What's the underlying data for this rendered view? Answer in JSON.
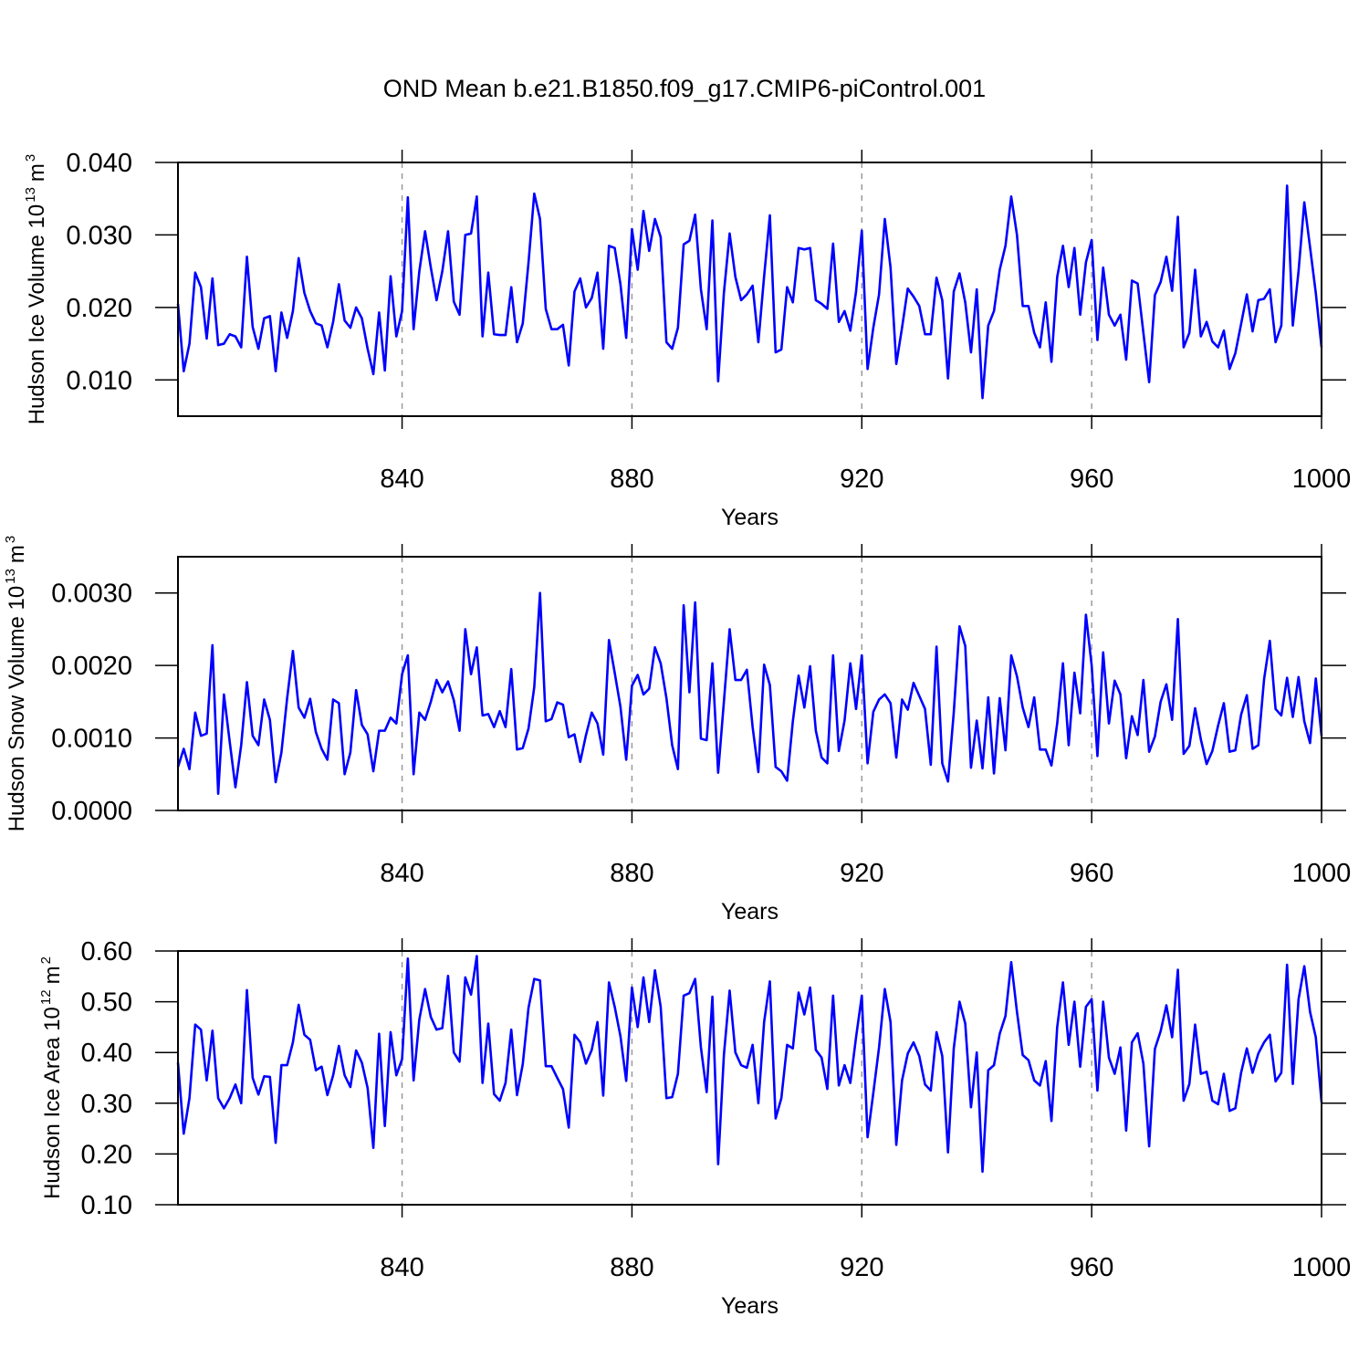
{
  "chart_data": [
    {
      "type": "line",
      "title": "OND Mean b.e21.B1850.f09_g17.CMIP6-piControl.001",
      "ylabel": [
        "Hudson Ice Volume 10",
        "13",
        "m",
        "3"
      ],
      "xlabel": "Years",
      "color": "#0000ff",
      "xgrid": true,
      "xlim": [
        801,
        1000
      ],
      "xticks": [
        840,
        880,
        920,
        960,
        1000
      ],
      "ylim": [
        0.005,
        0.04
      ],
      "yticks": [
        {
          "value": 0.01,
          "label": "0.010"
        },
        {
          "value": 0.02,
          "label": "0.020"
        },
        {
          "value": 0.03,
          "label": "0.030"
        },
        {
          "value": 0.04,
          "label": "0.040"
        }
      ],
      "x": [
        801,
        802,
        803,
        804,
        805,
        806,
        807,
        808,
        809,
        810,
        811,
        812,
        813,
        814,
        815,
        816,
        817,
        818,
        819,
        820,
        821,
        822,
        823,
        824,
        825,
        826,
        827,
        828,
        829,
        830,
        831,
        832,
        833,
        834,
        835,
        836,
        837,
        838,
        839,
        840,
        841,
        842,
        843,
        844,
        845,
        846,
        847,
        848,
        849,
        850,
        851,
        852,
        853,
        854,
        855,
        856,
        857,
        858,
        859,
        860,
        861,
        862,
        863,
        864,
        865,
        866,
        867,
        868,
        869,
        870,
        871,
        872,
        873,
        874,
        875,
        876,
        877,
        878,
        879,
        880,
        881,
        882,
        883,
        884,
        885,
        886,
        887,
        888,
        889,
        890,
        891,
        892,
        893,
        894,
        895,
        896,
        897,
        898,
        899,
        900,
        901,
        902,
        903,
        904,
        905,
        906,
        907,
        908,
        909,
        910,
        911,
        912,
        913,
        914,
        915,
        916,
        917,
        918,
        919,
        920,
        921,
        922,
        923,
        924,
        925,
        926,
        927,
        928,
        929,
        930,
        931,
        932,
        933,
        934,
        935,
        936,
        937,
        938,
        939,
        940,
        941,
        942,
        943,
        944,
        945,
        946,
        947,
        948,
        949,
        950,
        951,
        952,
        953,
        954,
        955,
        956,
        957,
        958,
        959,
        960,
        961,
        962,
        963,
        964,
        965,
        966,
        967,
        968,
        969,
        970,
        971,
        972,
        973,
        974,
        975,
        976,
        977,
        978,
        979,
        980,
        981,
        982,
        983,
        984,
        985,
        986,
        987,
        988,
        989,
        990,
        991,
        992,
        993,
        994,
        995,
        996,
        997,
        998,
        999,
        1000
      ],
      "values": [
        0.0205,
        0.0112,
        0.015,
        0.0248,
        0.0228,
        0.0157,
        0.024,
        0.0148,
        0.015,
        0.0163,
        0.016,
        0.0145,
        0.027,
        0.0173,
        0.0143,
        0.0185,
        0.0188,
        0.0112,
        0.0193,
        0.0158,
        0.0195,
        0.0268,
        0.022,
        0.0195,
        0.0178,
        0.0175,
        0.0145,
        0.018,
        0.0232,
        0.0182,
        0.0172,
        0.02,
        0.0185,
        0.0143,
        0.0108,
        0.0193,
        0.0113,
        0.0243,
        0.016,
        0.0195,
        0.0352,
        0.017,
        0.025,
        0.0305,
        0.0255,
        0.021,
        0.025,
        0.0305,
        0.0208,
        0.019,
        0.03,
        0.0302,
        0.0353,
        0.016,
        0.0248,
        0.0163,
        0.0162,
        0.0162,
        0.0228,
        0.0152,
        0.0178,
        0.0262,
        0.0357,
        0.0322,
        0.0198,
        0.017,
        0.017,
        0.0176,
        0.012,
        0.0222,
        0.024,
        0.02,
        0.0213,
        0.0248,
        0.0143,
        0.0285,
        0.0282,
        0.0232,
        0.0158,
        0.0308,
        0.0252,
        0.0333,
        0.0278,
        0.0322,
        0.0297,
        0.0152,
        0.0143,
        0.0172,
        0.0287,
        0.0292,
        0.0328,
        0.0225,
        0.017,
        0.032,
        0.0098,
        0.022,
        0.0302,
        0.0242,
        0.021,
        0.0218,
        0.023,
        0.0152,
        0.0243,
        0.0327,
        0.0138,
        0.0142,
        0.0228,
        0.0207,
        0.0282,
        0.028,
        0.0282,
        0.021,
        0.0205,
        0.0198,
        0.0288,
        0.018,
        0.0195,
        0.0168,
        0.0222,
        0.0306,
        0.0115,
        0.0172,
        0.0218,
        0.0322,
        0.0255,
        0.0122,
        0.0172,
        0.0226,
        0.0215,
        0.0202,
        0.0163,
        0.0163,
        0.0241,
        0.021,
        0.0102,
        0.0222,
        0.0247,
        0.0207,
        0.0138,
        0.0225,
        0.0075,
        0.0175,
        0.0195,
        0.0252,
        0.0285,
        0.0353,
        0.03,
        0.0202,
        0.0202,
        0.0165,
        0.0145,
        0.0207,
        0.0125,
        0.0242,
        0.0285,
        0.0228,
        0.0282,
        0.019,
        0.0262,
        0.0293,
        0.0155,
        0.0255,
        0.019,
        0.0175,
        0.019,
        0.0128,
        0.0237,
        0.0233,
        0.0165,
        0.0097,
        0.0217,
        0.0235,
        0.027,
        0.0223,
        0.0325,
        0.0145,
        0.0165,
        0.0252,
        0.016,
        0.018,
        0.0153,
        0.0145,
        0.0168,
        0.0115,
        0.0137,
        0.0177,
        0.0218,
        0.0167,
        0.021,
        0.0212,
        0.0225,
        0.0152,
        0.0175,
        0.0368,
        0.0175,
        0.025,
        0.0345,
        0.0283,
        0.022,
        0.0145
      ]
    },
    {
      "type": "line",
      "ylabel": [
        "Hudson Snow Volume 10",
        "13",
        "m",
        "3"
      ],
      "xlabel": "Years",
      "color": "#0000ff",
      "xgrid": true,
      "xlim": [
        801,
        1000
      ],
      "xticks": [
        840,
        880,
        920,
        960,
        1000
      ],
      "ylim": [
        0,
        0.0035
      ],
      "yticks": [
        {
          "value": 0,
          "label": "0.0000"
        },
        {
          "value": 0.001,
          "label": "0.0010"
        },
        {
          "value": 0.002,
          "label": "0.0020"
        },
        {
          "value": 0.003,
          "label": "0.0030"
        }
      ],
      "x": [
        801,
        802,
        803,
        804,
        805,
        806,
        807,
        808,
        809,
        810,
        811,
        812,
        813,
        814,
        815,
        816,
        817,
        818,
        819,
        820,
        821,
        822,
        823,
        824,
        825,
        826,
        827,
        828,
        829,
        830,
        831,
        832,
        833,
        834,
        835,
        836,
        837,
        838,
        839,
        840,
        841,
        842,
        843,
        844,
        845,
        846,
        847,
        848,
        849,
        850,
        851,
        852,
        853,
        854,
        855,
        856,
        857,
        858,
        859,
        860,
        861,
        862,
        863,
        864,
        865,
        866,
        867,
        868,
        869,
        870,
        871,
        872,
        873,
        874,
        875,
        876,
        877,
        878,
        879,
        880,
        881,
        882,
        883,
        884,
        885,
        886,
        887,
        888,
        889,
        890,
        891,
        892,
        893,
        894,
        895,
        896,
        897,
        898,
        899,
        900,
        901,
        902,
        903,
        904,
        905,
        906,
        907,
        908,
        909,
        910,
        911,
        912,
        913,
        914,
        915,
        916,
        917,
        918,
        919,
        920,
        921,
        922,
        923,
        924,
        925,
        926,
        927,
        928,
        929,
        930,
        931,
        932,
        933,
        934,
        935,
        936,
        937,
        938,
        939,
        940,
        941,
        942,
        943,
        944,
        945,
        946,
        947,
        948,
        949,
        950,
        951,
        952,
        953,
        954,
        955,
        956,
        957,
        958,
        959,
        960,
        961,
        962,
        963,
        964,
        965,
        966,
        967,
        968,
        969,
        970,
        971,
        972,
        973,
        974,
        975,
        976,
        977,
        978,
        979,
        980,
        981,
        982,
        983,
        984,
        985,
        986,
        987,
        988,
        989,
        990,
        991,
        992,
        993,
        994,
        995,
        996,
        997,
        998,
        999,
        1000
      ],
      "values": [
        0.0006,
        0.00085,
        0.00057,
        0.00135,
        0.00103,
        0.00106,
        0.00228,
        0.00023,
        0.0016,
        0.00095,
        0.00032,
        0.0009,
        0.00177,
        0.00103,
        0.0009,
        0.00153,
        0.00125,
        0.00039,
        0.0008,
        0.00155,
        0.0022,
        0.00142,
        0.00128,
        0.00154,
        0.00108,
        0.00085,
        0.0007,
        0.00153,
        0.00148,
        0.0005,
        0.0008,
        0.00166,
        0.00118,
        0.00105,
        0.00054,
        0.0011,
        0.0011,
        0.00128,
        0.0012,
        0.00188,
        0.00214,
        0.0005,
        0.00135,
        0.00125,
        0.0015,
        0.0018,
        0.00163,
        0.00178,
        0.00152,
        0.0011,
        0.0025,
        0.00188,
        0.00225,
        0.00131,
        0.00133,
        0.00115,
        0.00137,
        0.00115,
        0.00195,
        0.00084,
        0.00086,
        0.00113,
        0.0017,
        0.003,
        0.00123,
        0.00126,
        0.00149,
        0.00146,
        0.00101,
        0.00105,
        0.00067,
        0.00104,
        0.00135,
        0.0012,
        0.00077,
        0.00235,
        0.0019,
        0.00143,
        0.0007,
        0.00172,
        0.00187,
        0.0016,
        0.00168,
        0.00225,
        0.00203,
        0.00155,
        0.0009,
        0.00057,
        0.00283,
        0.00163,
        0.00287,
        0.00099,
        0.00097,
        0.00203,
        0.00052,
        0.0015,
        0.0025,
        0.0018,
        0.0018,
        0.00194,
        0.00115,
        0.00053,
        0.00201,
        0.00173,
        0.0006,
        0.00054,
        0.00041,
        0.00123,
        0.00186,
        0.00142,
        0.00199,
        0.0011,
        0.00073,
        0.00065,
        0.00214,
        0.00082,
        0.00124,
        0.00203,
        0.0014,
        0.00214,
        0.00065,
        0.00136,
        0.00153,
        0.0016,
        0.00148,
        0.00073,
        0.00153,
        0.00139,
        0.00176,
        0.00158,
        0.0014,
        0.00063,
        0.00226,
        0.00065,
        0.0004,
        0.00135,
        0.00254,
        0.00227,
        0.00059,
        0.00124,
        0.00058,
        0.00156,
        0.00051,
        0.00155,
        0.00083,
        0.00214,
        0.00185,
        0.00142,
        0.00115,
        0.00156,
        0.00084,
        0.00084,
        0.00062,
        0.0012,
        0.00203,
        0.0009,
        0.0019,
        0.00134,
        0.0027,
        0.002,
        0.00075,
        0.00218,
        0.0012,
        0.00179,
        0.0016,
        0.00072,
        0.0013,
        0.00104,
        0.0018,
        0.00081,
        0.00102,
        0.0015,
        0.00174,
        0.00125,
        0.00264,
        0.00078,
        0.00089,
        0.00141,
        0.00098,
        0.00064,
        0.00082,
        0.00117,
        0.00148,
        0.00081,
        0.00083,
        0.00132,
        0.00159,
        0.00085,
        0.0009,
        0.00181,
        0.00234,
        0.0014,
        0.00131,
        0.00183,
        0.00129,
        0.00184,
        0.00123,
        0.00093,
        0.00182,
        0.00103
      ]
    },
    {
      "type": "line",
      "ylabel": [
        "Hudson Ice Area 10",
        "12",
        "m",
        "2"
      ],
      "xlabel": "Years",
      "color": "#0000ff",
      "xgrid": true,
      "xlim": [
        801,
        1000
      ],
      "xticks": [
        840,
        880,
        920,
        960,
        1000
      ],
      "ylim": [
        0.1,
        0.6
      ],
      "yticks": [
        {
          "value": 0.1,
          "label": "0.10"
        },
        {
          "value": 0.2,
          "label": "0.20"
        },
        {
          "value": 0.3,
          "label": "0.30"
        },
        {
          "value": 0.4,
          "label": "0.40"
        },
        {
          "value": 0.5,
          "label": "0.50"
        },
        {
          "value": 0.6,
          "label": "0.60"
        }
      ],
      "x": [
        801,
        802,
        803,
        804,
        805,
        806,
        807,
        808,
        809,
        810,
        811,
        812,
        813,
        814,
        815,
        816,
        817,
        818,
        819,
        820,
        821,
        822,
        823,
        824,
        825,
        826,
        827,
        828,
        829,
        830,
        831,
        832,
        833,
        834,
        835,
        836,
        837,
        838,
        839,
        840,
        841,
        842,
        843,
        844,
        845,
        846,
        847,
        848,
        849,
        850,
        851,
        852,
        853,
        854,
        855,
        856,
        857,
        858,
        859,
        860,
        861,
        862,
        863,
        864,
        865,
        866,
        867,
        868,
        869,
        870,
        871,
        872,
        873,
        874,
        875,
        876,
        877,
        878,
        879,
        880,
        881,
        882,
        883,
        884,
        885,
        886,
        887,
        888,
        889,
        890,
        891,
        892,
        893,
        894,
        895,
        896,
        897,
        898,
        899,
        900,
        901,
        902,
        903,
        904,
        905,
        906,
        907,
        908,
        909,
        910,
        911,
        912,
        913,
        914,
        915,
        916,
        917,
        918,
        919,
        920,
        921,
        922,
        923,
        924,
        925,
        926,
        927,
        928,
        929,
        930,
        931,
        932,
        933,
        934,
        935,
        936,
        937,
        938,
        939,
        940,
        941,
        942,
        943,
        944,
        945,
        946,
        947,
        948,
        949,
        950,
        951,
        952,
        953,
        954,
        955,
        956,
        957,
        958,
        959,
        960,
        961,
        962,
        963,
        964,
        965,
        966,
        967,
        968,
        969,
        970,
        971,
        972,
        973,
        974,
        975,
        976,
        977,
        978,
        979,
        980,
        981,
        982,
        983,
        984,
        985,
        986,
        987,
        988,
        989,
        990,
        991,
        992,
        993,
        994,
        995,
        996,
        997,
        998,
        999,
        1000
      ],
      "values": [
        0.38,
        0.24,
        0.31,
        0.455,
        0.445,
        0.345,
        0.443,
        0.31,
        0.29,
        0.31,
        0.337,
        0.3,
        0.523,
        0.35,
        0.317,
        0.353,
        0.352,
        0.222,
        0.375,
        0.375,
        0.42,
        0.494,
        0.435,
        0.425,
        0.365,
        0.372,
        0.316,
        0.355,
        0.413,
        0.355,
        0.332,
        0.404,
        0.38,
        0.33,
        0.212,
        0.437,
        0.255,
        0.44,
        0.355,
        0.387,
        0.585,
        0.345,
        0.465,
        0.525,
        0.47,
        0.445,
        0.448,
        0.551,
        0.4,
        0.382,
        0.548,
        0.514,
        0.59,
        0.34,
        0.457,
        0.318,
        0.305,
        0.34,
        0.445,
        0.316,
        0.377,
        0.488,
        0.545,
        0.542,
        0.373,
        0.373,
        0.35,
        0.328,
        0.252,
        0.435,
        0.42,
        0.378,
        0.405,
        0.46,
        0.315,
        0.538,
        0.49,
        0.432,
        0.344,
        0.528,
        0.45,
        0.548,
        0.46,
        0.562,
        0.49,
        0.31,
        0.312,
        0.358,
        0.512,
        0.517,
        0.545,
        0.41,
        0.322,
        0.51,
        0.18,
        0.395,
        0.522,
        0.4,
        0.375,
        0.37,
        0.415,
        0.3,
        0.46,
        0.54,
        0.27,
        0.31,
        0.415,
        0.408,
        0.518,
        0.475,
        0.528,
        0.405,
        0.39,
        0.328,
        0.512,
        0.335,
        0.375,
        0.34,
        0.43,
        0.512,
        0.233,
        0.32,
        0.41,
        0.525,
        0.46,
        0.218,
        0.345,
        0.398,
        0.42,
        0.393,
        0.337,
        0.325,
        0.44,
        0.393,
        0.203,
        0.408,
        0.5,
        0.457,
        0.292,
        0.4,
        0.165,
        0.365,
        0.375,
        0.437,
        0.472,
        0.578,
        0.48,
        0.395,
        0.385,
        0.345,
        0.335,
        0.383,
        0.265,
        0.45,
        0.538,
        0.415,
        0.5,
        0.372,
        0.49,
        0.505,
        0.325,
        0.5,
        0.39,
        0.358,
        0.41,
        0.246,
        0.42,
        0.438,
        0.378,
        0.215,
        0.407,
        0.442,
        0.493,
        0.43,
        0.563,
        0.305,
        0.338,
        0.455,
        0.358,
        0.362,
        0.305,
        0.298,
        0.358,
        0.285,
        0.29,
        0.36,
        0.408,
        0.36,
        0.398,
        0.42,
        0.435,
        0.343,
        0.36,
        0.573,
        0.338,
        0.505,
        0.57,
        0.48,
        0.43,
        0.302
      ]
    }
  ]
}
